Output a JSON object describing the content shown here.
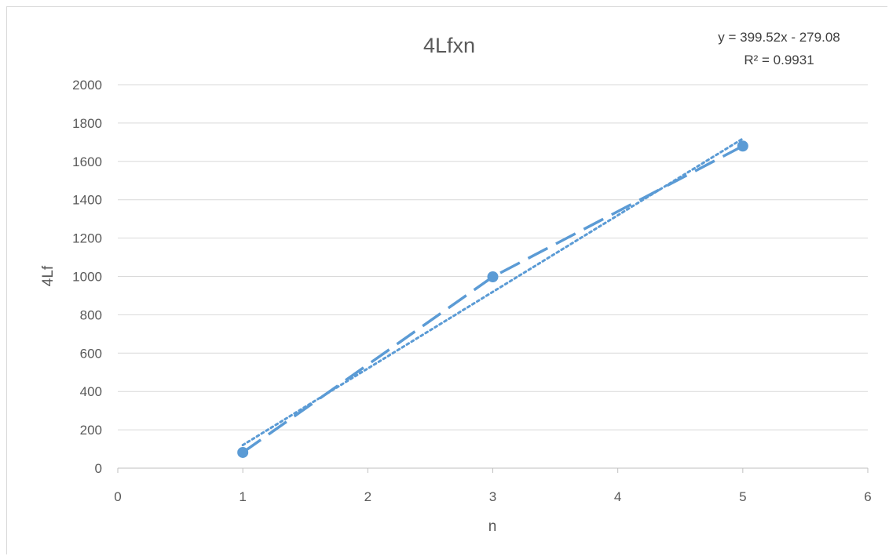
{
  "chart_data": {
    "type": "scatter",
    "title": "4Lfxn",
    "xlabel": "n",
    "ylabel": "4Lf",
    "xlim": [
      0,
      6
    ],
    "ylim": [
      0,
      2000
    ],
    "x_ticks": [
      "0",
      "1",
      "2",
      "3",
      "4",
      "5",
      "6"
    ],
    "y_ticks": [
      "0",
      "200",
      "400",
      "600",
      "800",
      "1000",
      "1200",
      "1400",
      "1600",
      "1800",
      "2000"
    ],
    "grid": "horizontal",
    "series": [
      {
        "x": [
          1,
          3,
          5
        ],
        "y": [
          82,
          998,
          1680
        ],
        "line_style": "long-dash",
        "marker": "circle",
        "color": "#5b9bd5"
      }
    ],
    "trendline": {
      "type": "linear",
      "slope": 399.52,
      "intercept": -279.08,
      "x_range": [
        1,
        5
      ],
      "line_style": "dotted",
      "color": "#5b9bd5",
      "equation": "y = 399.52x - 279.08",
      "r_squared": "R² = 0.9931"
    }
  }
}
